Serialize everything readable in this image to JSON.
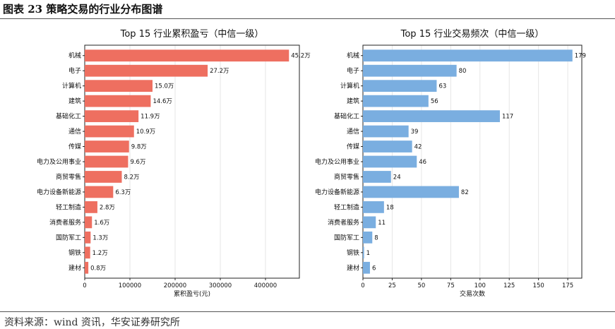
{
  "page": {
    "figure_title": "图表 23 策略交易的行业分布图谱",
    "source": "资料来源：wind 资讯，华安证券研究所"
  },
  "colors": {
    "left_bar": "#ee6f60",
    "right_bar": "#7aaee0"
  },
  "chart_data": [
    {
      "type": "bar",
      "orientation": "horizontal",
      "title": "Top 15 行业累积盈亏（中信一级）",
      "xlabel": "累积盈亏(元)",
      "xlim": [
        0,
        475000
      ],
      "xticks": [
        0,
        100000,
        200000,
        300000,
        400000
      ],
      "grid": "vertical",
      "categories": [
        "机械",
        "电子",
        "计算机",
        "建筑",
        "基础化工",
        "通信",
        "传媒",
        "电力及公用事业",
        "商贸零售",
        "电力设备新能源",
        "轻工制造",
        "消费者服务",
        "国防军工",
        "钢铁",
        "建材"
      ],
      "values": [
        452000,
        272000,
        150000,
        146000,
        119000,
        109000,
        98000,
        96000,
        82000,
        63000,
        28000,
        16000,
        13000,
        12000,
        8000
      ],
      "data_labels": [
        "45.2万",
        "27.2万",
        "15.0万",
        "14.6万",
        "11.9万",
        "10.9万",
        "9.8万",
        "9.6万",
        "8.2万",
        "6.3万",
        "2.8万",
        "1.6万",
        "1.3万",
        "1.2万",
        "0.8万"
      ]
    },
    {
      "type": "bar",
      "orientation": "horizontal",
      "title": "Top 15 行业交易频次（中信一级）",
      "xlabel": "交易次数",
      "xlim": [
        0,
        187
      ],
      "xticks": [
        0,
        25,
        50,
        75,
        100,
        125,
        150,
        175
      ],
      "grid": "vertical",
      "categories": [
        "机械",
        "电子",
        "计算机",
        "建筑",
        "基础化工",
        "通信",
        "传媒",
        "电力及公用事业",
        "商贸零售",
        "电力设备新能源",
        "轻工制造",
        "消费者服务",
        "国防军工",
        "钢铁",
        "建材"
      ],
      "values": [
        179,
        80,
        63,
        56,
        117,
        39,
        42,
        46,
        24,
        82,
        18,
        11,
        8,
        1,
        6
      ],
      "data_labels": [
        "179",
        "80",
        "63",
        "56",
        "117",
        "39",
        "42",
        "46",
        "24",
        "82",
        "18",
        "11",
        "8",
        "1",
        "6"
      ]
    }
  ]
}
